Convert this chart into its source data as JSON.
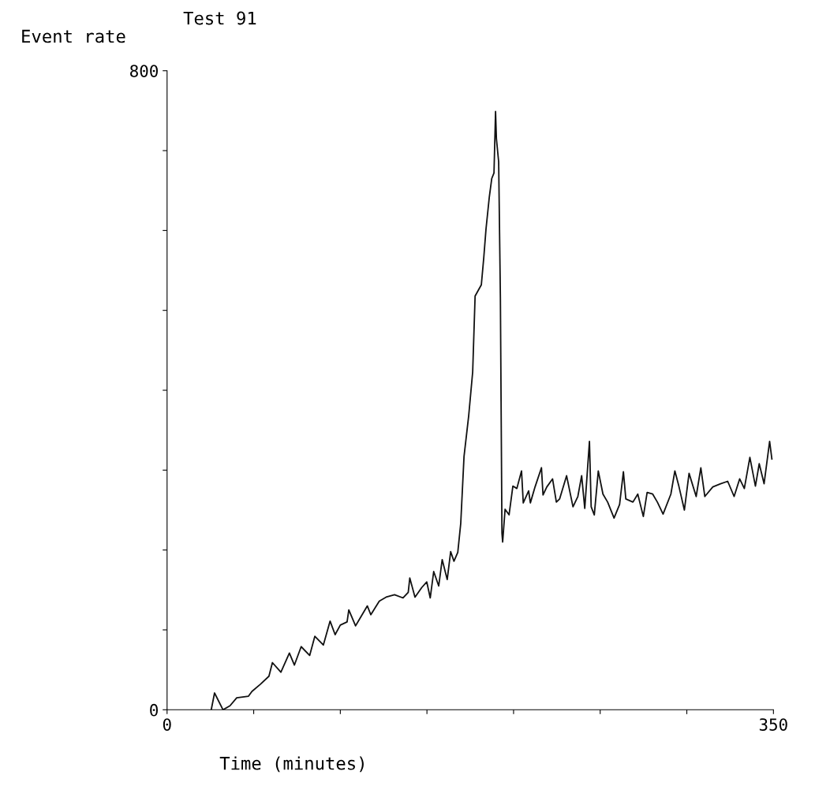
{
  "chart_data": {
    "type": "line",
    "title": "Test 91",
    "xlabel": "Time (minutes)",
    "ylabel": "Event rate",
    "xlim": [
      0,
      350
    ],
    "xticks": [
      0,
      {
        "value": 50,
        "label": null
      },
      {
        "value": 100,
        "label": null
      },
      {
        "value": 150,
        "label": null
      },
      {
        "value": 200,
        "label": null
      },
      {
        "value": 250,
        "label": null
      },
      {
        "value": 300,
        "label": null
      },
      350
    ],
    "ylim": [
      0,
      800
    ],
    "yticks": [
      0,
      {
        "value": 100,
        "label": null
      },
      {
        "value": 200,
        "label": null
      },
      {
        "value": 300,
        "label": null
      },
      {
        "value": 400,
        "label": null
      },
      {
        "value": 500,
        "label": null
      },
      {
        "value": 600,
        "label": null
      },
      {
        "value": 700,
        "label": null
      },
      800
    ],
    "marker": "none",
    "line_style": "solid",
    "series": [
      {
        "color": "#111111",
        "x": [
          25.5,
          27.4,
          32.3,
          36.3,
          40.2,
          47,
          49,
          53.9,
          58.8,
          60.8,
          65.7,
          70.6,
          73.5,
          77.4,
          82.3,
          85.3,
          90.2,
          94.1,
          97,
          100,
          103.9,
          104.9,
          108.8,
          110.7,
          115.6,
          117.6,
          122.5,
          126.4,
          131.3,
          136.2,
          139.2,
          140.1,
          143.1,
          147,
          149.9,
          151.9,
          153.9,
          156.8,
          158.8,
          161.7,
          163.7,
          165.6,
          167.8,
          169.5,
          171.4,
          174.1,
          176.4,
          177.8,
          181.4,
          182.8,
          184.1,
          186,
          187.4,
          188.7,
          189.6,
          190.1,
          191.4,
          192.4,
          193.3,
          193.7,
          195.1,
          197.4,
          199.6,
          201.9,
          204.6,
          205.6,
          208.7,
          209.7,
          212.4,
          216.1,
          217,
          219.2,
          222.5,
          224.7,
          226.6,
          230.6,
          234.3,
          237.1,
          239.3,
          241.1,
          243.8,
          244.8,
          246.6,
          248.9,
          251.6,
          254.3,
          258,
          261.2,
          263.4,
          264.8,
          268.9,
          271.7,
          274.9,
          277.1,
          280.3,
          283,
          286.3,
          290.8,
          293.1,
          295.4,
          298.6,
          301.3,
          305.4,
          308.1,
          310.4,
          315,
          319.5,
          323.6,
          327.3,
          330.5,
          333.2,
          336.4,
          339.6,
          341.8,
          344.6,
          347.8,
          349.1
        ],
        "values": [
          0,
          21,
          0,
          5,
          15,
          17,
          23,
          32,
          42,
          59,
          47,
          71,
          56,
          79,
          68,
          92,
          81,
          111,
          94,
          106,
          110,
          125,
          105,
          112,
          130,
          119,
          136,
          141,
          144,
          140,
          147,
          165,
          141,
          153,
          160,
          140,
          173,
          155,
          188,
          163,
          198,
          186,
          197,
          233,
          317,
          368,
          423,
          518,
          532,
          566,
          602,
          642,
          665,
          672,
          749,
          715,
          686,
          515,
          221,
          210,
          251,
          244,
          280,
          277,
          299,
          259,
          274,
          259,
          279,
          303,
          269,
          279,
          289,
          260,
          264,
          293,
          254,
          267,
          293,
          252,
          336,
          254,
          244,
          299,
          270,
          260,
          240,
          257,
          298,
          264,
          260,
          270,
          242,
          272,
          270,
          260,
          245,
          270,
          299,
          280,
          250,
          296,
          267,
          303,
          267,
          279,
          283,
          286,
          267,
          289,
          277,
          316,
          280,
          308,
          283,
          336,
          314
        ]
      }
    ]
  }
}
